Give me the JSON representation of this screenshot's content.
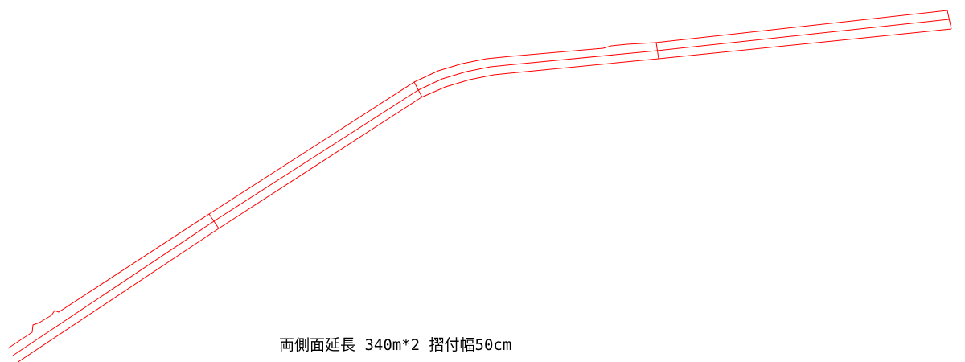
{
  "annotation": {
    "text": "両側面延長 340m*2 摺付幅50cm"
  },
  "colors": {
    "line": "#ff0000",
    "text": "#000000",
    "background": "#ffffff"
  }
}
